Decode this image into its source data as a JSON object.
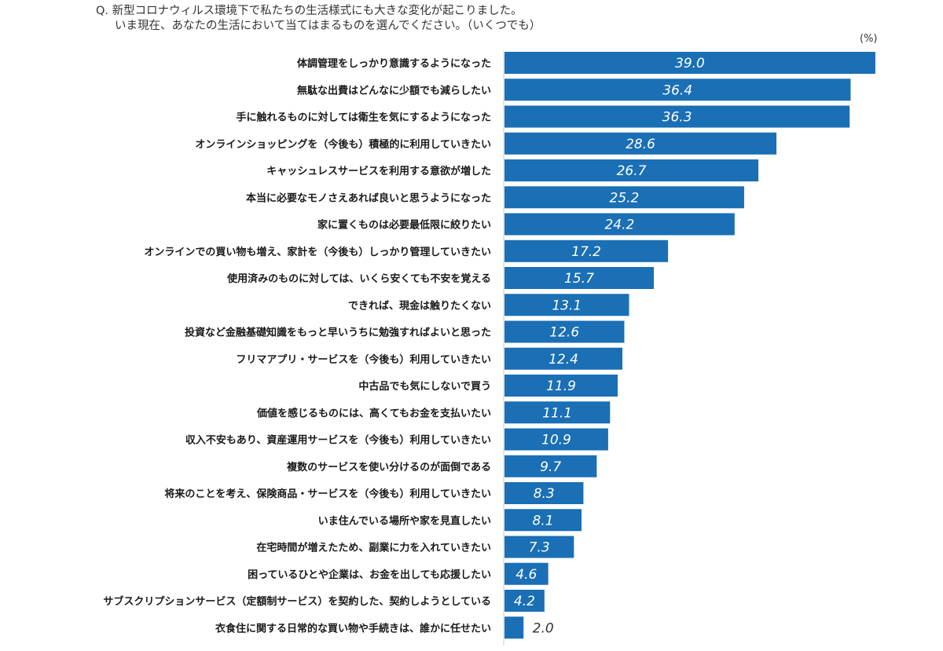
{
  "question": {
    "line1": "Q. 新型コロナウィルス環境下で私たちの生活様式にも大きな変化が起こりました。",
    "line2": "いま現在、あなたの生活において当てはまるものを選んでください。（いくつでも）"
  },
  "chart_data": {
    "type": "bar",
    "orientation": "horizontal",
    "unit": "(%)",
    "bar_color": "#1a6fb5",
    "categories": [
      "体調管理をしっかり意識するようになった",
      "無駄な出費はどんなに少額でも減らしたい",
      "手に触れるものに対しては衛生を気にするようになった",
      "オンラインショッピングを（今後も）積極的に利用していきたい",
      "キャッシュレスサービスを利用する意欲が増した",
      "本当に必要なモノさえあれば良いと思うようになった",
      "家に置くものは必要最低限に絞りたい",
      "オンラインでの買い物も増え、家計を（今後も）しっかり管理していきたい",
      "使用済みのものに対しては、いくら安くても不安を覚える",
      "できれば、現金は触りたくない",
      "投資など金融基礎知識をもっと早いうちに勉強すればよいと思った",
      "フリマアプリ・サービスを（今後も）利用していきたい",
      "中古品でも気にしないで買う",
      "価値を感じるものには、高くてもお金を支払いたい",
      "収入不安もあり、資産運用サービスを（今後も）利用していきたい",
      "複数のサービスを使い分けるのが面倒である",
      "将来のことを考え、保険商品・サービスを（今後も）利用していきたい",
      "いま住んでいる場所や家を見直したい",
      "在宅時間が増えたため、副業に力を入れていきたい",
      "困っているひとや企業は、お金を出しても応援したい",
      "サブスクリプションサービス（定額制サービス）を契約した、契約しようとしている",
      "衣食住に関する日常的な買い物や手続きは、誰かに任せたい"
    ],
    "values": [
      39.0,
      36.4,
      36.3,
      28.6,
      26.7,
      25.2,
      24.2,
      17.2,
      15.7,
      13.1,
      12.6,
      12.4,
      11.9,
      11.1,
      10.9,
      9.7,
      8.3,
      8.1,
      7.3,
      4.6,
      4.2,
      2.0
    ],
    "value_labels": [
      "39.0",
      "36.4",
      "36.3",
      "28.6",
      "26.7",
      "25.2",
      "24.2",
      "17.2",
      "15.7",
      "13.1",
      "12.6",
      "12.4",
      "11.9",
      "11.1",
      "10.9",
      "9.7",
      "8.3",
      "8.1",
      "7.3",
      "4.6",
      "4.2",
      "2.0"
    ],
    "grid": false,
    "legend": "none"
  }
}
